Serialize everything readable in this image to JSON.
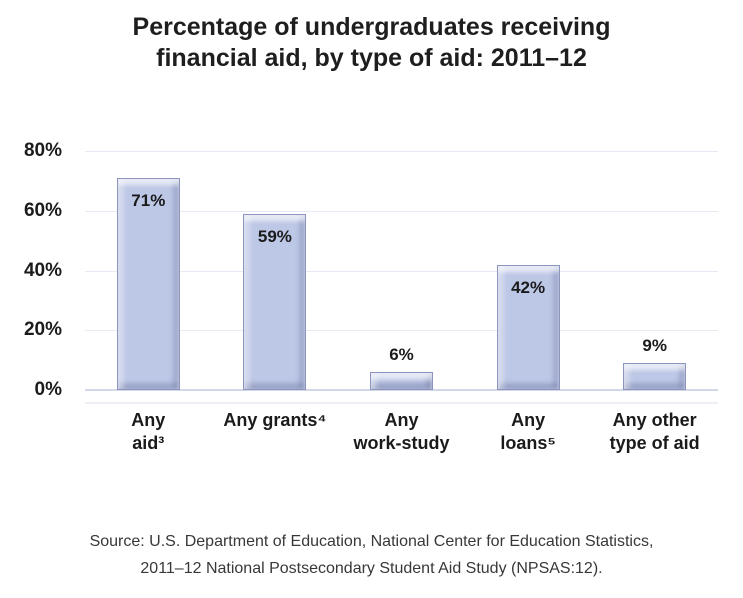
{
  "chart_data": {
    "type": "bar",
    "title": "Percentage of undergraduates receiving financial aid, by type of aid: 2011–12",
    "title_lines": [
      "Percentage of undergraduates receiving",
      "financial aid, by type of aid: 2011–12"
    ],
    "categories": [
      "Any aid³",
      "Any grants⁴",
      "Any work-study",
      "Any loans⁵",
      "Any other type of aid"
    ],
    "category_label_lines": [
      [
        "Any",
        "aid³"
      ],
      [
        "Any grants⁴"
      ],
      [
        "Any",
        "work-study"
      ],
      [
        "Any",
        "loans⁵"
      ],
      [
        "Any other",
        "type of aid"
      ]
    ],
    "values": [
      71,
      59,
      6,
      42,
      9
    ],
    "value_labels": [
      "71%",
      "59%",
      "6%",
      "42%",
      "9%"
    ],
    "xlabel": "",
    "ylabel": "",
    "ylim": [
      0,
      80
    ],
    "yticks": [
      0,
      20,
      40,
      60,
      80
    ],
    "ytick_labels": [
      "0%",
      "20%",
      "40%",
      "60%",
      "80%"
    ],
    "grid": true,
    "legend": "none",
    "colors": {
      "bar_fill": "#bdc7e6",
      "bar_border": "#8b95bf",
      "gridline": "#e7eaf3",
      "baseline": "#d2d8e8",
      "sub_baseline": "#eef0f7",
      "label_text": "#1b1b1b",
      "title_text": "#1e1e1e",
      "source_text": "#383838"
    }
  },
  "source": {
    "lines": [
      "Source: U.S. Department of Education, National Center for Education Statistics,",
      "2011–12 National Postsecondary Student Aid Study (NPSAS:12)."
    ]
  }
}
